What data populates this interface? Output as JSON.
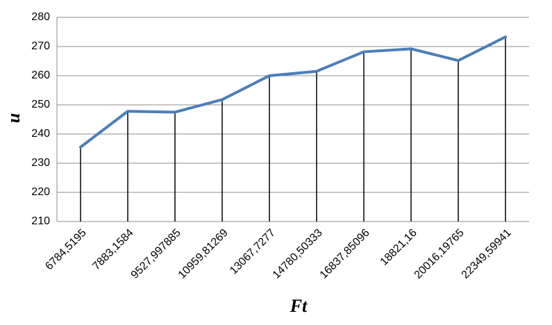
{
  "chart_data": {
    "type": "line",
    "x_label": "Ft",
    "y_label": "u",
    "categories": [
      "6784,5195",
      "7883,1584",
      "9527,997885",
      "10959,81269",
      "13067,7277",
      "14780,50333",
      "16837,85096",
      "18821,16",
      "20016,19765",
      "22349,59941"
    ],
    "series": [
      {
        "color": "#4a7ebb",
        "values": [
          235.5,
          247.8,
          247.5,
          251.8,
          260,
          261.5,
          268.2,
          269.2,
          265.2,
          273.3
        ]
      }
    ],
    "drop_lines": true,
    "drop_line_color": "#000000",
    "ylim": [
      210,
      280
    ],
    "yticks": [
      210,
      220,
      230,
      240,
      250,
      260,
      270,
      280
    ],
    "grid": true
  }
}
